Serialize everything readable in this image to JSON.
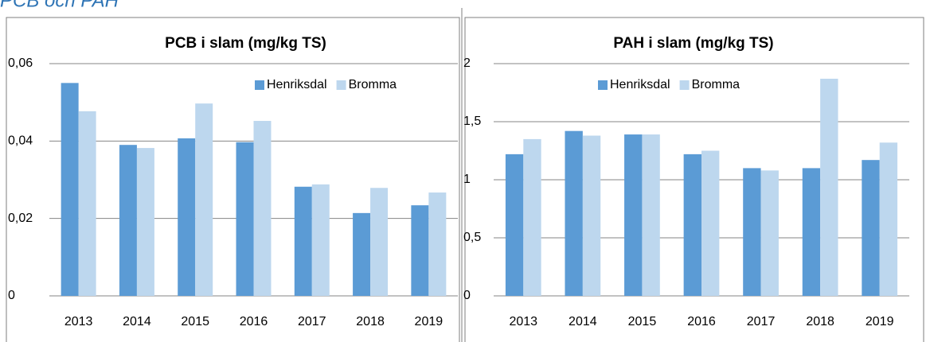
{
  "heading": "PCB och PAH",
  "chart_data": [
    {
      "type": "bar",
      "title": "PCB i slam (mg/kg TS)",
      "categories": [
        "2013",
        "2014",
        "2015",
        "2016",
        "2017",
        "2018",
        "2019"
      ],
      "series": [
        {
          "name": "Henriksdal",
          "color": "#5b9bd5",
          "values": [
            0.055,
            0.039,
            0.0407,
            0.0397,
            0.0282,
            0.0214,
            0.0234
          ]
        },
        {
          "name": "Bromma",
          "color": "#bdd7ee",
          "values": [
            0.0477,
            0.0382,
            0.0497,
            0.0452,
            0.0288,
            0.0279,
            0.0267
          ]
        }
      ],
      "ylim": [
        0,
        0.06
      ],
      "yticks": [
        0,
        {
          "value": 0.02,
          "label": "0,02"
        },
        {
          "value": 0.04,
          "label": "0,04"
        },
        {
          "value": 0.06,
          "label": "0,06"
        }
      ],
      "grid": true,
      "legend": "upper right"
    },
    {
      "type": "bar",
      "title": "PAH i slam (mg/kg TS)",
      "categories": [
        "2013",
        "2014",
        "2015",
        "2016",
        "2017",
        "2018",
        "2019"
      ],
      "series": [
        {
          "name": "Henriksdal",
          "color": "#5b9bd5",
          "values": [
            1.22,
            1.42,
            1.39,
            1.22,
            1.1,
            1.1,
            1.17
          ]
        },
        {
          "name": "Bromma",
          "color": "#bdd7ee",
          "values": [
            1.35,
            1.38,
            1.39,
            1.25,
            1.08,
            1.87,
            1.32
          ]
        }
      ],
      "ylim": [
        0,
        2
      ],
      "yticks": [
        0,
        {
          "value": 0.5,
          "label": "0,5"
        },
        1,
        {
          "value": 1.5,
          "label": "1,5"
        },
        2
      ],
      "grid": true,
      "legend": "upper center"
    }
  ]
}
